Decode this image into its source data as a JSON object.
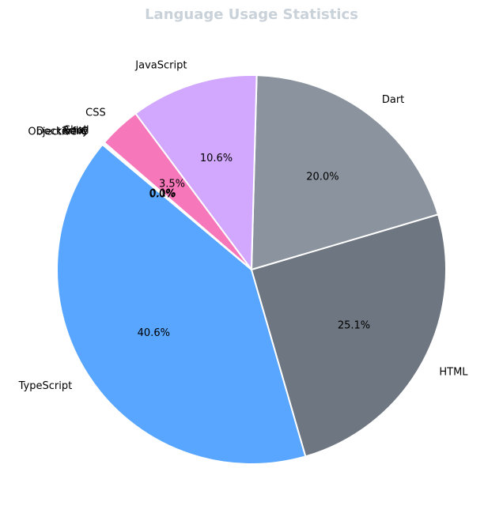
{
  "chart_data": {
    "type": "pie",
    "title": "Language Usage Statistics",
    "slices": [
      {
        "label": "TypeScript",
        "value": 40.6,
        "pct_label": "40.6%",
        "color": "#58a6ff"
      },
      {
        "label": "HTML",
        "value": 25.1,
        "pct_label": "25.1%",
        "color": "#6e7681"
      },
      {
        "label": "Dart",
        "value": 20.0,
        "pct_label": "20.0%",
        "color": "#8b949e"
      },
      {
        "label": "JavaScript",
        "value": 10.6,
        "pct_label": "10.6%",
        "color": "#d2a8ff"
      },
      {
        "label": "CSS",
        "value": 3.5,
        "pct_label": "3.5%",
        "color": "#f778ba"
      },
      {
        "label": "Shell",
        "value": 0.1,
        "pct_label": "0.1%",
        "color": "#89e051"
      },
      {
        "label": "Ruby",
        "value": 0.05,
        "pct_label": "0.0%",
        "color": "#701516"
      },
      {
        "label": "C",
        "value": 0.03,
        "pct_label": "0.0%",
        "color": "#555555"
      },
      {
        "label": "Dockerfile",
        "value": 0.02,
        "pct_label": "0.0%",
        "color": "#384d54"
      },
      {
        "label": "Objective-C",
        "value": 0.02,
        "pct_label": "0.0%",
        "color": "#438eff"
      }
    ],
    "start_angle_deg": 140,
    "direction": "counterclockwise",
    "edge_color": "#ffffff",
    "legend": "none"
  }
}
